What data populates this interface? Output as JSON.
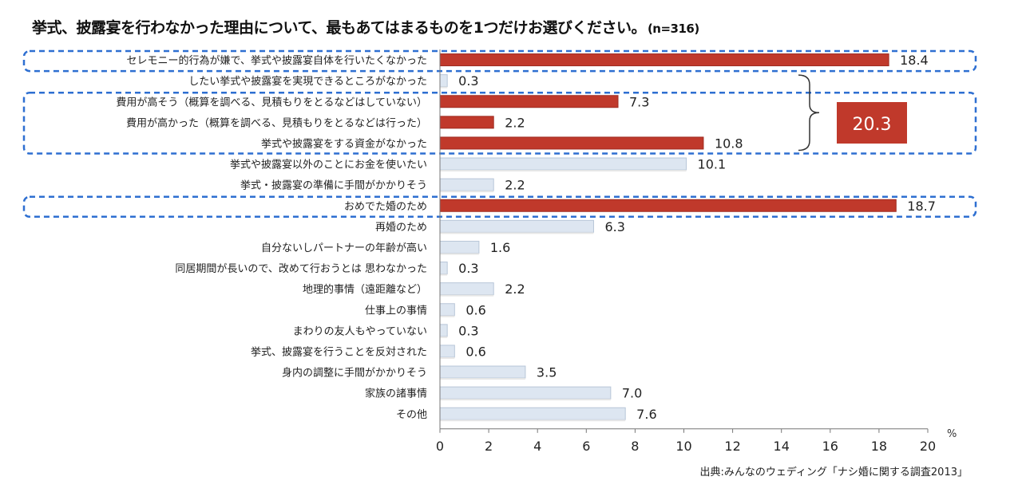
{
  "chart_data": {
    "type": "bar",
    "orientation": "horizontal",
    "title": "挙式、披露宴を行わなかった理由について、最もあてはまるものを1つだけお選びください。",
    "sample_note": "(n=316)",
    "categories": [
      "セレモニー的行為が嫌で、挙式や披露宴自体を行いたくなかった",
      "したい挙式や披露宴を実現できるところがなかった",
      "費用が高そう（概算を調べる、見積もりをとるなどはしていない）",
      "費用が高かった（概算を調べる、見積もりをとるなどは行った）",
      "挙式や披露宴をする資金がなかった",
      "挙式や披露宴以外のことにお金を使いたい",
      "挙式・披露宴の準備に手間がかかりそう",
      "おめでた婚のため",
      "再婚のため",
      "自分ないしパートナーの年齢が高い",
      "同居期間が長いので、改めて行おうとは 思わなかった",
      "地理的事情（遠距離など）",
      "仕事上の事情",
      "まわりの友人もやっていない",
      "挙式、披露宴を行うことを反対された",
      "身内の調整に手間がかかりそう",
      "家族の諸事情",
      "その他"
    ],
    "value_labels": [
      "18.4",
      "0.3",
      "7.3",
      "2.2",
      "10.8",
      "10.1",
      "2.2",
      "18.7",
      "6.3",
      "1.6",
      "0.3",
      "2.2",
      "0.6",
      "0.3",
      "0.6",
      "3.5",
      "7.0",
      "7.6"
    ],
    "values": [
      18.4,
      0.3,
      7.3,
      2.2,
      10.8,
      10.1,
      2.2,
      18.7,
      6.3,
      1.6,
      0.3,
      2.2,
      0.6,
      0.3,
      0.6,
      3.5,
      7.0,
      7.6
    ],
    "highlighted": [
      true,
      false,
      true,
      true,
      true,
      false,
      false,
      true,
      false,
      false,
      false,
      false,
      false,
      false,
      false,
      false,
      false,
      false
    ],
    "xlim": [
      0,
      20
    ],
    "x_ticks": [
      0,
      2,
      4,
      6,
      8,
      10,
      12,
      14,
      16,
      18,
      20
    ],
    "x_unit": "%",
    "grid": false,
    "highlight_color": "#c0392b",
    "bar_color": "#dde6f1",
    "box_color": "#2e6fd1",
    "callout": {
      "value": "20.3",
      "color": "#c0392b"
    },
    "source": "出典:みんなのウェディング「ナシ婚に関する調査2013」"
  }
}
